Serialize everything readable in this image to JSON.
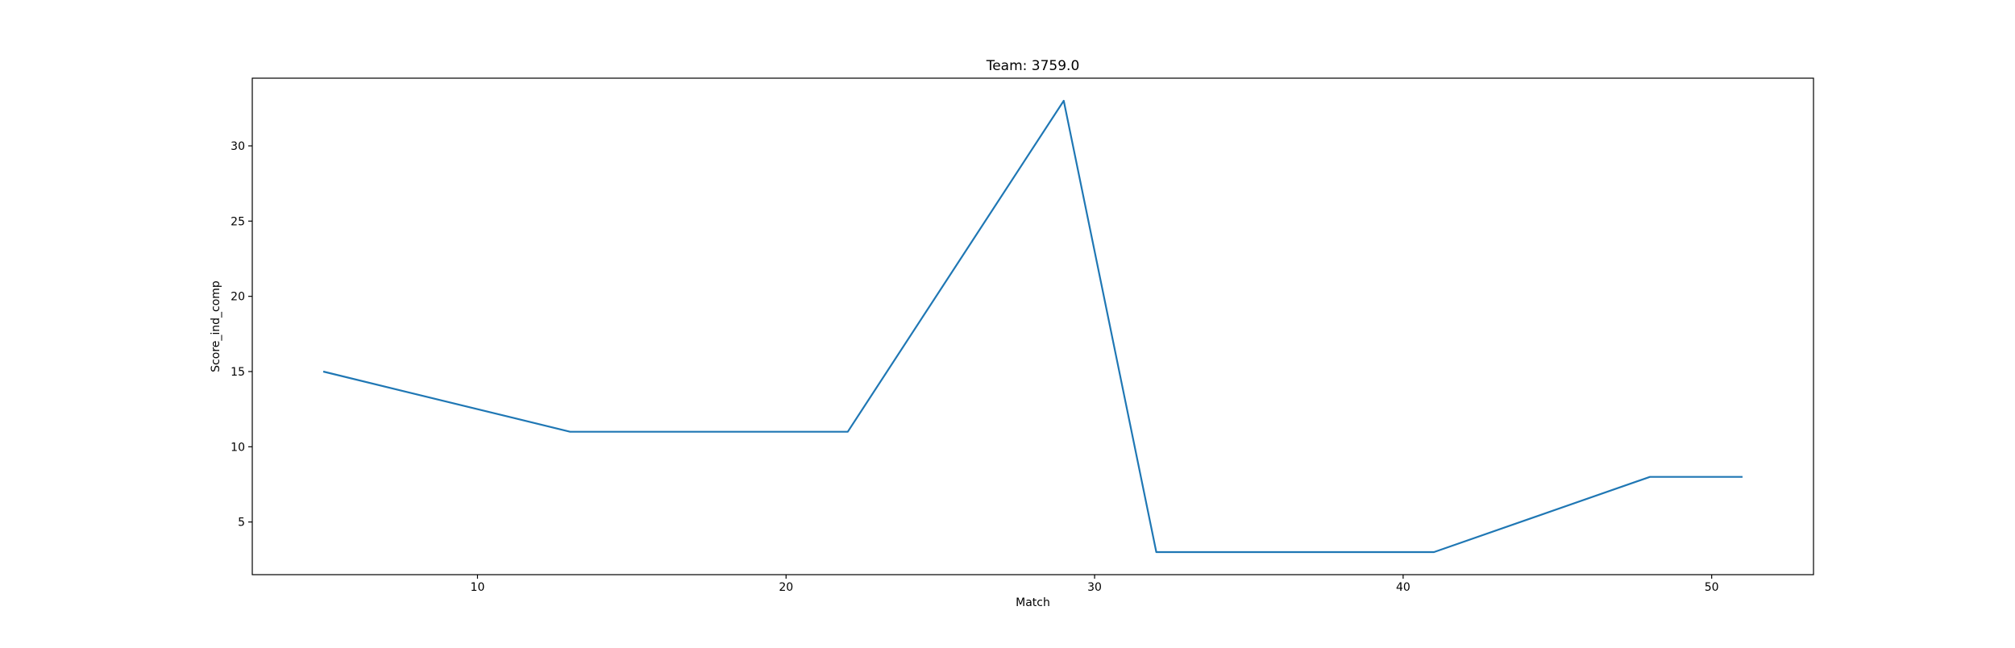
{
  "chart_data": {
    "type": "line",
    "title": "Team: 3759.0",
    "xlabel": "Match",
    "ylabel": "Score_ind_comp",
    "xlim": [
      2.7,
      53.3
    ],
    "ylim": [
      1.5,
      34.5
    ],
    "xticks": [
      10,
      20,
      30,
      40,
      50
    ],
    "yticks": [
      5,
      10,
      15,
      20,
      25,
      30
    ],
    "grid": false,
    "legend": "none",
    "series": [
      {
        "color": "#1f77b4",
        "x": [
          5,
          13,
          22,
          29,
          32,
          41,
          48,
          51
        ],
        "y": [
          15,
          11,
          11,
          33,
          3,
          3,
          8,
          8
        ]
      }
    ]
  }
}
